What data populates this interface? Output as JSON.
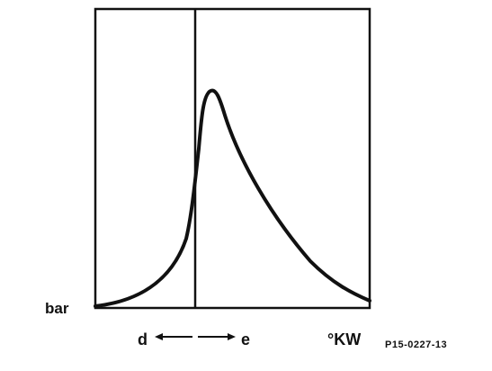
{
  "labels": {
    "y_axis": "bar",
    "x_axis": "°KW",
    "left_direction": "d",
    "right_direction": "e",
    "figure_code": "P15-0227-13"
  },
  "colors": {
    "line": "#111111",
    "background": "#ffffff"
  }
}
